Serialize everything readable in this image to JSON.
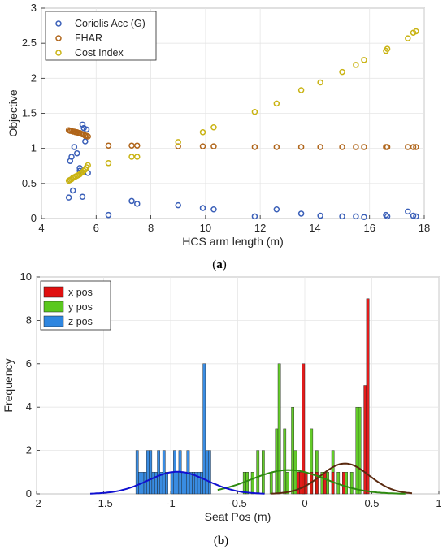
{
  "chart_data": [
    {
      "type": "scatter",
      "panel_label": "a",
      "xlabel": "HCS arm length (m)",
      "ylabel": "Objective",
      "xlim": [
        4,
        18
      ],
      "ylim": [
        0,
        3
      ],
      "xticks": [
        4,
        6,
        8,
        10,
        12,
        14,
        16,
        18
      ],
      "yticks": [
        0,
        0.5,
        1,
        1.5,
        2,
        2.5,
        3
      ],
      "grid": true,
      "legend_position": "top-left",
      "series": [
        {
          "name": "Coriolis Acc (G)",
          "color": "#3a5fb8",
          "x": [
            5.0,
            5.05,
            5.1,
            5.2,
            5.3,
            5.4,
            5.5,
            5.55,
            5.6,
            5.65,
            5.05,
            5.15,
            5.4,
            5.5,
            5.7,
            6.45,
            7.3,
            7.5,
            9.0,
            9.9,
            10.3,
            11.8,
            12.6,
            13.5,
            14.2,
            15.0,
            15.5,
            15.8,
            16.6,
            16.65,
            17.4,
            17.6,
            17.7
          ],
          "y": [
            0.3,
            0.82,
            0.88,
            1.02,
            0.93,
            0.72,
            1.34,
            1.29,
            1.1,
            1.27,
            0.55,
            0.4,
            0.68,
            0.31,
            0.65,
            0.05,
            0.25,
            0.21,
            0.19,
            0.15,
            0.13,
            0.03,
            0.13,
            0.07,
            0.04,
            0.03,
            0.03,
            0.02,
            0.05,
            0.03,
            0.1,
            0.04,
            0.03
          ]
        },
        {
          "name": "FHAR",
          "color": "#b0651a",
          "x": [
            5.0,
            5.05,
            5.1,
            5.15,
            5.2,
            5.25,
            5.3,
            5.35,
            5.4,
            5.45,
            5.5,
            5.55,
            5.6,
            5.65,
            5.7,
            6.45,
            7.3,
            7.5,
            9.0,
            9.9,
            10.3,
            11.8,
            12.6,
            13.5,
            14.2,
            15.0,
            15.5,
            15.8,
            16.6,
            16.65,
            17.4,
            17.6,
            17.7
          ],
          "y": [
            1.26,
            1.25,
            1.25,
            1.24,
            1.24,
            1.23,
            1.23,
            1.22,
            1.22,
            1.21,
            1.2,
            1.2,
            1.18,
            1.18,
            1.17,
            1.04,
            1.04,
            1.04,
            1.03,
            1.03,
            1.03,
            1.02,
            1.02,
            1.02,
            1.02,
            1.02,
            1.02,
            1.02,
            1.02,
            1.02,
            1.02,
            1.02,
            1.02
          ]
        },
        {
          "name": "Cost Index",
          "color": "#c9b312",
          "x": [
            5.0,
            5.05,
            5.1,
            5.15,
            5.2,
            5.25,
            5.3,
            5.35,
            5.4,
            5.45,
            5.5,
            5.55,
            5.6,
            5.65,
            5.7,
            6.45,
            7.3,
            7.5,
            9.0,
            9.9,
            10.3,
            11.8,
            12.6,
            13.5,
            14.2,
            15.0,
            15.5,
            15.8,
            16.6,
            16.65,
            17.4,
            17.6,
            17.7
          ],
          "y": [
            0.54,
            0.55,
            0.56,
            0.58,
            0.59,
            0.6,
            0.61,
            0.62,
            0.63,
            0.65,
            0.66,
            0.68,
            0.7,
            0.73,
            0.76,
            0.79,
            0.88,
            0.88,
            1.09,
            1.23,
            1.3,
            1.52,
            1.64,
            1.83,
            1.94,
            2.09,
            2.19,
            2.26,
            2.39,
            2.42,
            2.57,
            2.65,
            2.67
          ]
        }
      ]
    },
    {
      "type": "bar",
      "panel_label": "b",
      "xlabel": "Seat Pos (m)",
      "ylabel": "Frequency",
      "xlim": [
        -2,
        1
      ],
      "ylim": [
        0,
        10
      ],
      "xticks": [
        -2,
        -1.5,
        -1,
        -0.5,
        0,
        0.5,
        1
      ],
      "xtick_labels": [
        "-2",
        "-1.5",
        "-1",
        "-0.5",
        "0",
        "0.5",
        "1"
      ],
      "yticks": [
        0,
        2,
        4,
        6,
        8,
        10
      ],
      "grid": true,
      "legend_position": "top-left",
      "bin_width": 0.02,
      "series": [
        {
          "name": "x pos",
          "color": "#e01010",
          "fit_color": "#5a2a10",
          "bin_centers": [
            -0.05,
            -0.03,
            -0.01,
            0.01,
            0.05,
            0.09,
            0.15,
            0.21,
            0.29,
            0.45,
            0.47
          ],
          "counts": [
            1,
            1,
            6,
            1,
            1,
            1,
            1,
            1,
            1,
            5,
            9
          ],
          "fit": {
            "mean": 0.3,
            "sd": 0.18,
            "peak": 1.4,
            "xrange": [
              -0.25,
              0.8
            ]
          }
        },
        {
          "name": "y pos",
          "color": "#5bc81e",
          "fit_color": "#2e8a10",
          "bin_centers": [
            -0.45,
            -0.43,
            -0.39,
            -0.35,
            -0.31,
            -0.25,
            -0.21,
            -0.19,
            -0.15,
            -0.13,
            -0.09,
            -0.07,
            -0.01,
            0.05,
            0.09,
            0.13,
            0.17,
            0.21,
            0.25,
            0.31,
            0.35,
            0.39,
            0.41
          ],
          "counts": [
            1,
            1,
            1,
            2,
            2,
            1,
            3,
            6,
            3,
            1,
            4,
            2,
            1,
            3,
            2,
            1,
            1,
            2,
            1,
            1,
            1,
            4,
            4
          ],
          "fit": {
            "mean": -0.12,
            "sd": 0.28,
            "peak": 1.1,
            "xrange": [
              -0.65,
              0.75
            ]
          }
        },
        {
          "name": "z pos",
          "color": "#2e86e0",
          "fit_color": "#1010d0",
          "bin_centers": [
            -1.25,
            -1.23,
            -1.21,
            -1.19,
            -1.17,
            -1.15,
            -1.13,
            -1.11,
            -1.09,
            -1.07,
            -1.05,
            -1.03,
            -0.99,
            -0.97,
            -0.95,
            -0.93,
            -0.91,
            -0.89,
            -0.87,
            -0.85,
            -0.83,
            -0.81,
            -0.79,
            -0.77,
            -0.75,
            -0.73,
            -0.71
          ],
          "counts": [
            2,
            1,
            1,
            1,
            2,
            2,
            1,
            1,
            2,
            1,
            2,
            1,
            1,
            2,
            1,
            2,
            1,
            1,
            2,
            1,
            1,
            1,
            1,
            1,
            6,
            2,
            2
          ],
          "fit": {
            "mean": -0.95,
            "sd": 0.22,
            "peak": 1.02,
            "xrange": [
              -1.6,
              -0.3
            ]
          }
        }
      ]
    }
  ]
}
